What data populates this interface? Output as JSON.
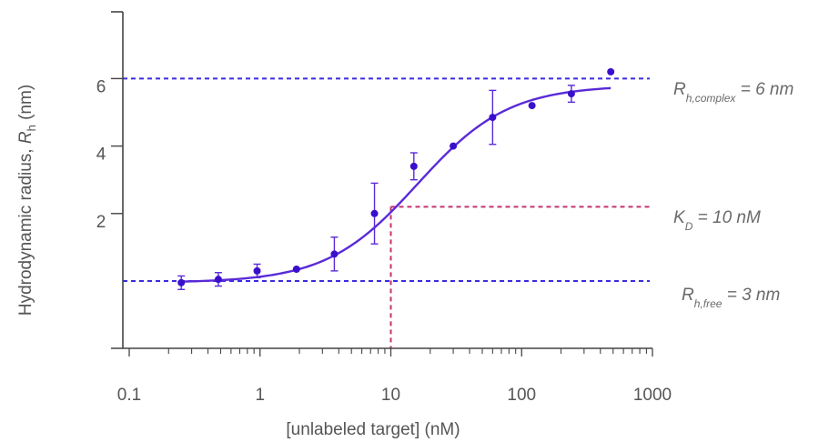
{
  "chart_data": {
    "type": "scatter",
    "title": "",
    "xlabel": "[unlabeled target] (nM)",
    "ylabel": {
      "prefix": "Hydrodynamic radius, ",
      "symbol": "R",
      "subscript": "h",
      "suffix": " (nm)"
    },
    "x_scale": "log",
    "xlim": [
      0.1,
      1000
    ],
    "ylim": [
      0,
      8.6
    ],
    "x_ticks": [
      0.1,
      1,
      10,
      100,
      1000
    ],
    "x_tick_labels": [
      "0.1",
      "1",
      "10",
      "100",
      "1000"
    ],
    "y_ticks": [
      2,
      4,
      6
    ],
    "y_tick_labels": [
      "2",
      "4",
      "6"
    ],
    "colors": {
      "data": "#3a0fcc",
      "curve": "#5a2ad8",
      "ref_line": "#3b2be0",
      "kd_line": "#c2336f",
      "axis": "#444444"
    },
    "points": [
      {
        "x": 0.25,
        "y": -0.05,
        "err": 0.2
      },
      {
        "x": 0.48,
        "y": 0.05,
        "err": 0.2
      },
      {
        "x": 0.95,
        "y": 0.3,
        "err": 0.2
      },
      {
        "x": 1.9,
        "y": 0.35,
        "err": 0
      },
      {
        "x": 3.7,
        "y": 0.8,
        "err": 0.5
      },
      {
        "x": 7.5,
        "y": 2.0,
        "err": 0.9
      },
      {
        "x": 15,
        "y": 3.4,
        "err": 0.4
      },
      {
        "x": 30,
        "y": 4.0,
        "err": 0
      },
      {
        "x": 60,
        "y": 4.85,
        "err": 0.8
      },
      {
        "x": 120,
        "y": 5.2,
        "err": 0
      },
      {
        "x": 240,
        "y": 5.55,
        "err": 0.25
      },
      {
        "x": 480,
        "y": 6.2,
        "err": 0
      }
    ],
    "fit_curve": {
      "x_start": 0.25,
      "x_end": 480,
      "y_min": -0.05,
      "y_max": 5.8,
      "midpoint": 16,
      "hill": 1.25
    },
    "reference_lines": [
      {
        "y": 6,
        "label": {
          "symbol": "R",
          "subscript": "h,complex",
          "text": " = 6 nm"
        }
      },
      {
        "y": 0,
        "label": {
          "symbol": "R",
          "subscript": "h,free",
          "text": " = 3 nm"
        }
      }
    ],
    "kd": {
      "x": 10,
      "y": 2.2,
      "label": {
        "symbol": "K",
        "subscript": "D",
        "text": " = 10 nM"
      }
    }
  }
}
